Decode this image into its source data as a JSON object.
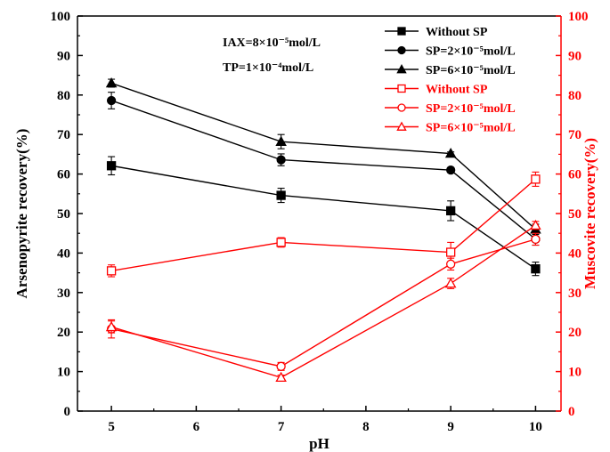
{
  "chart_data": {
    "type": "line",
    "xlabel": "pH",
    "ylabel_left": "Arsenopyrite recovery(%)",
    "ylabel_right": "Muscovite recovery(%)",
    "xlim": [
      4.6,
      10.3
    ],
    "ylim": [
      0,
      100
    ],
    "x_ticks": [
      5,
      6,
      7,
      8,
      9,
      10
    ],
    "y_ticks": [
      0,
      10,
      20,
      30,
      40,
      50,
      60,
      70,
      80,
      90,
      100
    ],
    "annotations": [
      {
        "text": "IAX=8×10⁻⁵mol/L"
      },
      {
        "text": "TP=1×10⁻⁴mol/L"
      }
    ],
    "colors": {
      "left_axis": "#000000",
      "right_axis": "#ff0000"
    },
    "legend_position": "top-right",
    "series": [
      {
        "name": "Without SP",
        "axis": "left",
        "color": "#000000",
        "marker": "square",
        "filled": true,
        "x": [
          5,
          7,
          9,
          10
        ],
        "values": [
          62.1,
          54.6,
          50.7,
          36.0
        ],
        "errors": [
          2.3,
          1.8,
          2.5,
          1.7
        ]
      },
      {
        "name": "SP=2×10⁻⁵mol/L",
        "axis": "left",
        "color": "#000000",
        "marker": "circle",
        "filled": true,
        "x": [
          5,
          7,
          9,
          10
        ],
        "values": [
          78.6,
          63.6,
          61.0,
          43.5
        ],
        "errors": [
          2.1,
          1.5,
          0.6,
          1.5
        ]
      },
      {
        "name": "SP=6×10⁻⁵mol/L",
        "axis": "left",
        "color": "#000000",
        "marker": "triangle",
        "filled": true,
        "x": [
          5,
          7,
          9,
          10
        ],
        "values": [
          83.0,
          68.2,
          65.2,
          46.0
        ],
        "errors": [
          1.0,
          1.8,
          0.4,
          1.3
        ]
      },
      {
        "name": "Without SP",
        "axis": "right",
        "color": "#ff0000",
        "marker": "square",
        "filled": false,
        "x": [
          5,
          7,
          9,
          10
        ],
        "values": [
          35.5,
          42.7,
          40.2,
          58.7
        ],
        "errors": [
          1.5,
          1.2,
          2.5,
          1.8
        ]
      },
      {
        "name": "SP=2×10⁻⁵mol/L",
        "axis": "right",
        "color": "#ff0000",
        "marker": "circle",
        "filled": false,
        "x": [
          5,
          7,
          9,
          10
        ],
        "values": [
          20.8,
          11.3,
          37.2,
          43.5
        ],
        "errors": [
          2.3,
          1.0,
          1.5,
          1.5
        ]
      },
      {
        "name": "SP=6×10⁻⁵mol/L",
        "axis": "right",
        "color": "#ff0000",
        "marker": "triangle",
        "filled": false,
        "x": [
          5,
          7,
          9,
          10
        ],
        "values": [
          21.3,
          8.5,
          32.3,
          47.0
        ],
        "errors": [
          1.5,
          0.6,
          1.3,
          1.0
        ]
      }
    ]
  }
}
